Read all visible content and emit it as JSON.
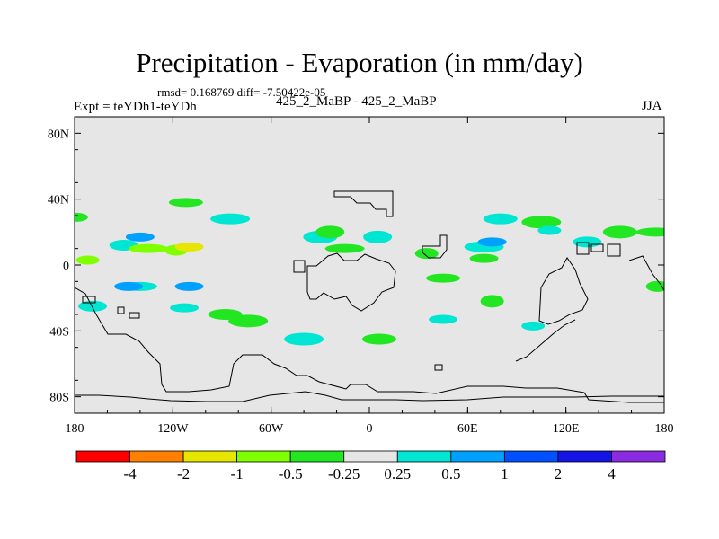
{
  "chart_data": {
    "type": "filled-contour-map",
    "title": "Precipitation - Evaporation (in mm/day)",
    "stats_line": "rmsd= 0.168769 diff= -7.50422e-05",
    "left_label": "Expt = teYDh1-teYDh",
    "center_label": "425_2_MaBP - 425_2_MaBP",
    "right_label": "JJA",
    "x_range": [
      -180,
      180
    ],
    "y_range": [
      -90,
      90
    ],
    "x_ticks": [
      "180",
      "120W",
      "60W",
      "0",
      "60E",
      "120E",
      "180"
    ],
    "y_ticks": [
      "80N",
      "40N",
      "0",
      "40S",
      "80S"
    ],
    "colorbar": {
      "colors": [
        "#ff0000",
        "#ff8000",
        "#e6e600",
        "#80ff00",
        "#22e622",
        "#e6e6e6",
        "#00e6d2",
        "#00a0ff",
        "#0050ff",
        "#1414e6",
        "#8a2be2"
      ],
      "labels": [
        "-4",
        "-2",
        "-1",
        "-0.5",
        "-0.25",
        "0.25",
        "0.5",
        "1",
        "2",
        "4"
      ]
    },
    "anomalies": [
      {
        "lon": -172,
        "lat": 3,
        "level": "-0.5"
      },
      {
        "lon": -150,
        "lat": 12,
        "level": "0.5"
      },
      {
        "lon": -140,
        "lat": 17,
        "level": "1"
      },
      {
        "lon": -135,
        "lat": 10,
        "level": "-0.5"
      },
      {
        "lon": -118,
        "lat": 9,
        "level": "-0.5"
      },
      {
        "lon": -110,
        "lat": 11,
        "level": "-1"
      },
      {
        "lon": -140,
        "lat": -13,
        "level": "0.5"
      },
      {
        "lon": -147,
        "lat": -13,
        "level": "1"
      },
      {
        "lon": -110,
        "lat": -13,
        "level": "1"
      },
      {
        "lon": -113,
        "lat": -26,
        "level": "0.5"
      },
      {
        "lon": -88,
        "lat": -30,
        "level": "-0.25"
      },
      {
        "lon": -74,
        "lat": -34,
        "level": "-0.25"
      },
      {
        "lon": -179,
        "lat": 29,
        "level": "-0.25"
      },
      {
        "lon": -169,
        "lat": -25,
        "level": "0.5"
      },
      {
        "lon": -30,
        "lat": 17,
        "level": "0.5"
      },
      {
        "lon": -15,
        "lat": 10,
        "level": "-0.25"
      },
      {
        "lon": 35,
        "lat": 7,
        "level": "-0.25"
      },
      {
        "lon": 5,
        "lat": 17,
        "level": "0.5"
      },
      {
        "lon": 45,
        "lat": -8,
        "level": "-0.25"
      },
      {
        "lon": 70,
        "lat": 11,
        "level": "0.5"
      },
      {
        "lon": 75,
        "lat": 14,
        "level": "1"
      },
      {
        "lon": 70,
        "lat": 4,
        "level": "-0.25"
      },
      {
        "lon": 80,
        "lat": 28,
        "level": "0.5"
      },
      {
        "lon": 105,
        "lat": 26,
        "level": "-0.25"
      },
      {
        "lon": 110,
        "lat": 21,
        "level": "0.5"
      },
      {
        "lon": 133,
        "lat": 14,
        "level": "0.5"
      },
      {
        "lon": 153,
        "lat": 20,
        "level": "-0.25"
      },
      {
        "lon": 175,
        "lat": 20,
        "level": "-0.25"
      },
      {
        "lon": 176,
        "lat": -13,
        "level": "-0.25"
      },
      {
        "lon": -24,
        "lat": 20,
        "level": "-0.25"
      },
      {
        "lon": -112,
        "lat": 38,
        "level": "-0.25"
      },
      {
        "lon": -85,
        "lat": 28,
        "level": "0.5"
      },
      {
        "lon": 75,
        "lat": -22,
        "level": "-0.25"
      },
      {
        "lon": 45,
        "lat": -33,
        "level": "0.5"
      },
      {
        "lon": 6,
        "lat": -45,
        "level": "-0.25"
      },
      {
        "lon": -40,
        "lat": -45,
        "level": "0.5"
      },
      {
        "lon": 100,
        "lat": -37,
        "level": "0.5"
      }
    ]
  }
}
